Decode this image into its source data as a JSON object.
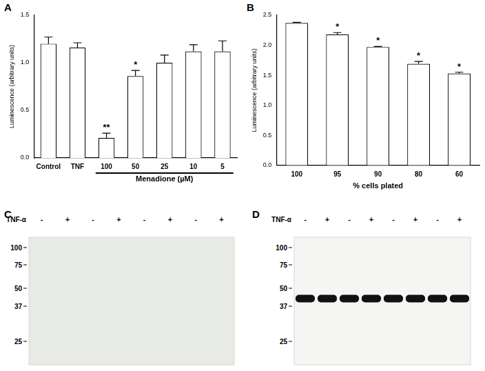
{
  "chart_data": [
    {
      "panel": "A",
      "type": "bar",
      "categories": [
        "Control",
        "TNF",
        "100",
        "50",
        "25",
        "10",
        "5"
      ],
      "values": [
        1.2,
        1.16,
        0.21,
        0.86,
        1.0,
        1.12,
        1.12
      ],
      "errors": [
        0.07,
        0.05,
        0.05,
        0.06,
        0.08,
        0.07,
        0.11
      ],
      "color": "#ffffff",
      "ylabel": "Luminescence (arbitrary units)",
      "xlabel": "Menadione (µM)",
      "xlabel_categories": [
        "100",
        "50",
        "25",
        "10",
        "5"
      ],
      "ylim": [
        0,
        1.5
      ],
      "yticks": [
        {
          "value": 0,
          "label": "0.0"
        },
        {
          "value": 0.5,
          "label": "0.5"
        },
        {
          "value": 1,
          "label": "1.0"
        },
        {
          "value": 1.5,
          "label": "1.5"
        }
      ],
      "annotations": [
        {
          "category": "100",
          "text": "**"
        },
        {
          "category": "50",
          "text": "*"
        }
      ],
      "grid": false
    },
    {
      "panel": "B",
      "type": "bar",
      "categories": [
        "100",
        "95",
        "90",
        "80",
        "60"
      ],
      "values": [
        2.37,
        2.18,
        1.97,
        1.69,
        1.53
      ],
      "errors": [
        0.01,
        0.03,
        0.01,
        0.04,
        0.02
      ],
      "color": "#ffffff",
      "ylabel": "Luminescence (arbitrary units)",
      "xlabel": "% cells plated",
      "ylim": [
        0,
        2.5
      ],
      "yticks": [
        {
          "value": 0,
          "label": "0.0"
        },
        {
          "value": 0.5,
          "label": "0.5"
        },
        {
          "value": 1,
          "label": "1.0"
        },
        {
          "value": 1.5,
          "label": "1.5"
        },
        {
          "value": 2,
          "label": "2.0"
        },
        {
          "value": 2.5,
          "label": "2.5"
        }
      ],
      "annotations": [
        {
          "category": "95",
          "text": "*"
        },
        {
          "category": "90",
          "text": "*"
        },
        {
          "category": "80",
          "text": "*"
        },
        {
          "category": "60",
          "text": "*"
        }
      ],
      "grid": false
    }
  ],
  "blots": [
    {
      "panel": "C",
      "lane_label": "TNF-α",
      "lanes": [
        "-",
        "+",
        "-",
        "+",
        "-",
        "+",
        "-",
        "+"
      ],
      "markers": [
        100,
        75,
        50,
        37,
        25
      ]
    },
    {
      "panel": "D",
      "lane_label": "TNF-α",
      "lanes": [
        "-",
        "+",
        "-",
        "+",
        "-",
        "+",
        "-",
        "+"
      ],
      "markers": [
        100,
        75,
        50,
        37,
        25
      ],
      "band_kda": 42
    }
  ]
}
